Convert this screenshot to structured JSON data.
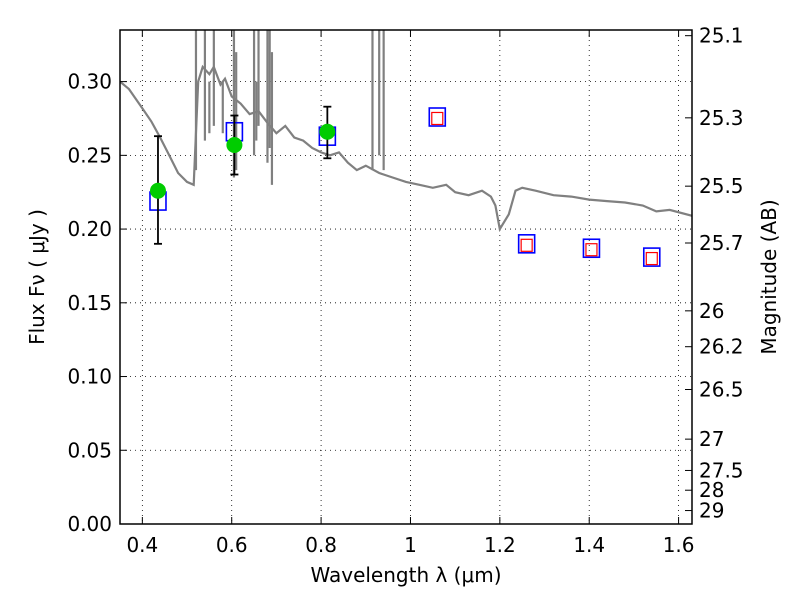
{
  "chart_data": {
    "type": "scatter",
    "xlabel": "Wavelength  λ (μm)",
    "ylabel": "Flux  Fν  ( μJy )",
    "y2label": "Magnitude (AB)",
    "xlim": [
      0.35,
      1.63
    ],
    "ylim": [
      0.0,
      0.335
    ],
    "grid": true,
    "x_ticks": [
      0.4,
      0.6,
      0.8,
      1,
      1.2,
      1.4,
      1.6
    ],
    "y_ticks": [
      0.0,
      0.05,
      0.1,
      0.15,
      0.2,
      0.25,
      0.3
    ],
    "y_tick_labels": [
      "0.00",
      "0.05",
      "0.10",
      "0.15",
      "0.20",
      "0.25",
      "0.30"
    ],
    "x_tick_labels": [
      "0.4",
      "0.6",
      "0.8",
      "1",
      "1.2",
      "1.4",
      "1.6"
    ],
    "mag_ticks": [
      "25.1",
      "25.3",
      "25.5",
      "25.7",
      "26",
      "26.2",
      "26.5",
      "27",
      "27.5",
      "28",
      "29"
    ],
    "series": [
      {
        "kind": "model_sed_line",
        "color": "#808080",
        "x": [
          0.35,
          0.37,
          0.4,
          0.42,
          0.44,
          0.46,
          0.48,
          0.5,
          0.515,
          0.525,
          0.535,
          0.55,
          0.56,
          0.575,
          0.585,
          0.6,
          0.62,
          0.64,
          0.66,
          0.68,
          0.7,
          0.72,
          0.74,
          0.76,
          0.78,
          0.8,
          0.82,
          0.84,
          0.86,
          0.88,
          0.9,
          0.93,
          0.96,
          0.99,
          1.02,
          1.05,
          1.08,
          1.1,
          1.13,
          1.16,
          1.18,
          1.19,
          1.2,
          1.22,
          1.235,
          1.25,
          1.28,
          1.32,
          1.36,
          1.4,
          1.44,
          1.48,
          1.52,
          1.55,
          1.58,
          1.63
        ],
        "values": [
          0.3,
          0.295,
          0.282,
          0.273,
          0.262,
          0.25,
          0.238,
          0.232,
          0.23,
          0.3,
          0.31,
          0.305,
          0.31,
          0.298,
          0.302,
          0.29,
          0.285,
          0.278,
          0.28,
          0.272,
          0.265,
          0.27,
          0.262,
          0.26,
          0.255,
          0.252,
          0.25,
          0.252,
          0.245,
          0.24,
          0.243,
          0.238,
          0.235,
          0.232,
          0.23,
          0.228,
          0.23,
          0.225,
          0.223,
          0.226,
          0.222,
          0.216,
          0.2,
          0.21,
          0.226,
          0.228,
          0.226,
          0.223,
          0.222,
          0.22,
          0.219,
          0.218,
          0.216,
          0.212,
          0.213,
          0.209
        ]
      },
      {
        "kind": "model_sed_spikes",
        "color": "#808080",
        "x": [
          0.52,
          0.54,
          0.55,
          0.56,
          0.58,
          0.605,
          0.61,
          0.65,
          0.655,
          0.66,
          0.68,
          0.685,
          0.69,
          0.915,
          0.93,
          0.94
        ],
        "bottom": [
          0.24,
          0.26,
          0.265,
          0.27,
          0.265,
          0.235,
          0.24,
          0.25,
          0.26,
          0.27,
          0.245,
          0.255,
          0.23,
          0.24,
          0.25,
          0.24
        ],
        "top": [
          0.335,
          0.335,
          0.3,
          0.335,
          0.3,
          0.335,
          0.32,
          0.335,
          0.3,
          0.335,
          0.335,
          0.335,
          0.32,
          0.335,
          0.335,
          0.335
        ]
      },
      {
        "kind": "model_photometry",
        "marker": "open-square-large",
        "color": "#0000ff",
        "x": [
          0.435,
          0.606,
          0.814,
          1.06,
          1.26,
          1.405,
          1.54
        ],
        "values": [
          0.219,
          0.266,
          0.263,
          0.276,
          0.19,
          0.187,
          0.181
        ]
      },
      {
        "kind": "model_photometry_alt",
        "marker": "open-square-small",
        "color": "#ff0000",
        "x": [
          1.06,
          1.26,
          1.405,
          1.54
        ],
        "values": [
          0.275,
          0.189,
          0.186,
          0.18
        ]
      },
      {
        "kind": "observed_photometry",
        "marker": "filled-circle",
        "color": "#00cc00",
        "x": [
          0.435,
          0.606,
          0.814
        ],
        "values": [
          0.226,
          0.257,
          0.266
        ],
        "err_low": [
          0.19,
          0.237,
          0.248
        ],
        "err_high": [
          0.263,
          0.277,
          0.283
        ]
      }
    ]
  }
}
